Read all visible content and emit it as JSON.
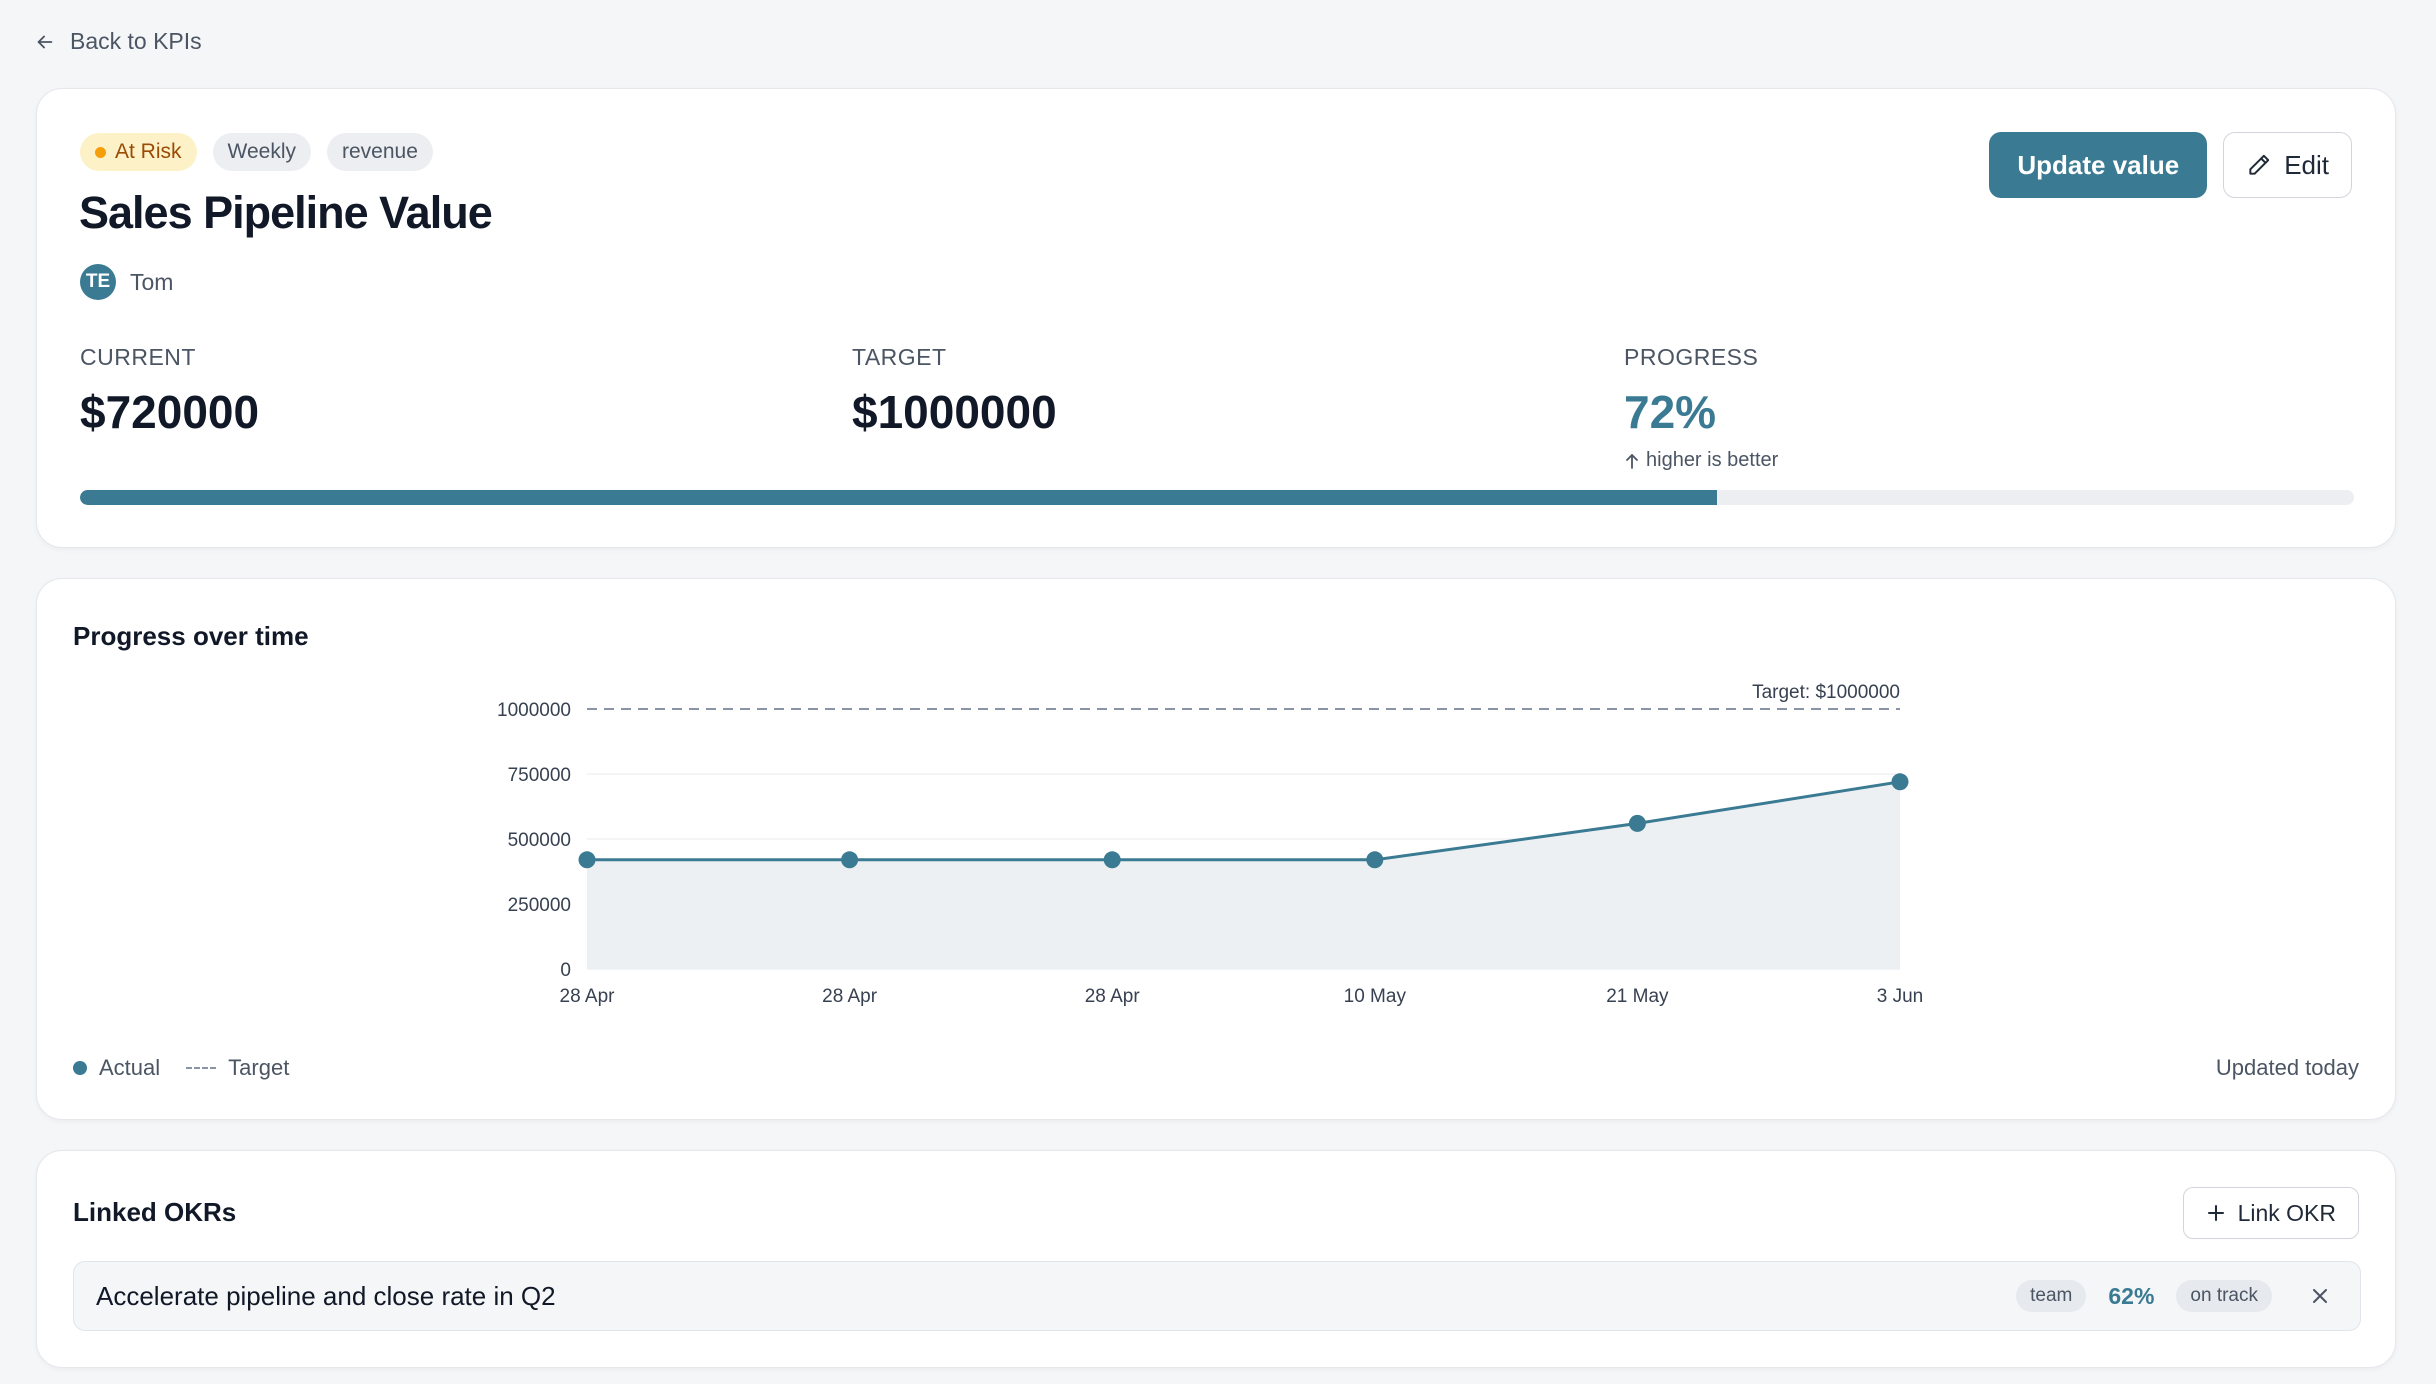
{
  "nav": {
    "back_label": "Back to KPIs"
  },
  "kpi": {
    "status": "At Risk",
    "frequency": "Weekly",
    "category": "revenue",
    "title": "Sales Pipeline Value",
    "owner_initials": "TE",
    "owner_name": "Tom",
    "update_label": "Update value",
    "edit_label": "Edit",
    "current_label": "CURRENT",
    "current_value": "$720000",
    "target_label": "TARGET",
    "target_value": "$1000000",
    "progress_label": "PROGRESS",
    "progress_value": "72%",
    "progress_fraction": 0.72,
    "direction_hint": "higher is better"
  },
  "chart_section": {
    "title": "Progress over time",
    "legend_actual": "Actual",
    "legend_target": "Target",
    "updated": "Updated today"
  },
  "chart_data": {
    "type": "line",
    "categories": [
      "28 Apr",
      "28 Apr",
      "28 Apr",
      "10 May",
      "21 May",
      "3 Jun"
    ],
    "series": [
      {
        "name": "Actual",
        "values": [
          420000,
          420000,
          420000,
          420000,
          560000,
          720000
        ]
      }
    ],
    "target": 1000000,
    "target_label": "Target: $1000000",
    "yticks": [
      0,
      250000,
      500000,
      750000,
      1000000
    ],
    "ylim": [
      0,
      1000000
    ],
    "grid": true,
    "colors": {
      "line": "#3a7a92",
      "area": "#ecf0f3",
      "target": "#8a94a6"
    }
  },
  "okr_section": {
    "title": "Linked OKRs",
    "link_label": "Link OKR",
    "items": [
      {
        "title": "Accelerate pipeline and close rate in Q2",
        "scope": "team",
        "progress": "62%",
        "status": "on track"
      }
    ]
  },
  "colors": {
    "accent": "#3a7a92",
    "at_risk_bg": "#fdf2c7",
    "at_risk_text": "#9a4b06"
  }
}
